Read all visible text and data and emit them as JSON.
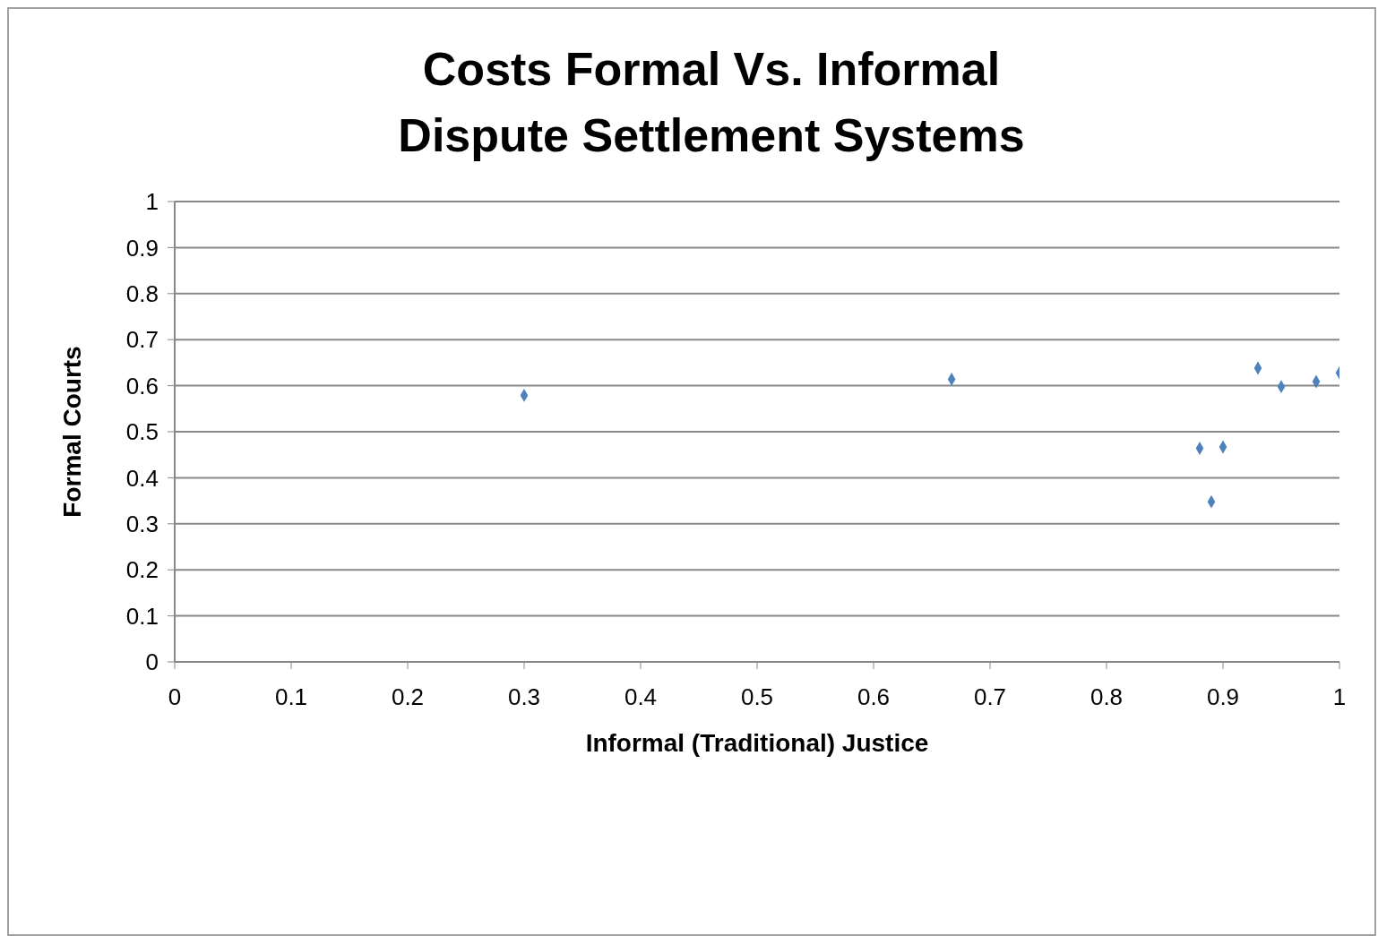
{
  "chart_data": {
    "type": "scatter",
    "title": "Costs Formal Vs. Informal Dispute Settlement Systems",
    "xlabel": "Informal (Traditional)  Justice",
    "ylabel": "Formal Courts",
    "x": [
      0.3,
      0.667,
      0.88,
      0.9,
      0.89,
      0.93,
      0.95,
      0.98,
      1.0
    ],
    "values": [
      0.579,
      0.614,
      0.464,
      0.467,
      0.348,
      0.638,
      0.598,
      0.609,
      0.628
    ],
    "color": "#4f81bd",
    "marker": "diamond",
    "xlim": [
      0,
      1
    ],
    "xticks": [
      0,
      0.1,
      0.2,
      0.3,
      0.4,
      0.5,
      0.6,
      0.7,
      0.8,
      0.9,
      1
    ],
    "ylim": [
      0,
      1
    ],
    "yticks": [
      0,
      0.1,
      0.2,
      0.3,
      0.4,
      0.5,
      0.6,
      0.7,
      0.8,
      0.9,
      1
    ],
    "grid": "y",
    "legend": false
  }
}
